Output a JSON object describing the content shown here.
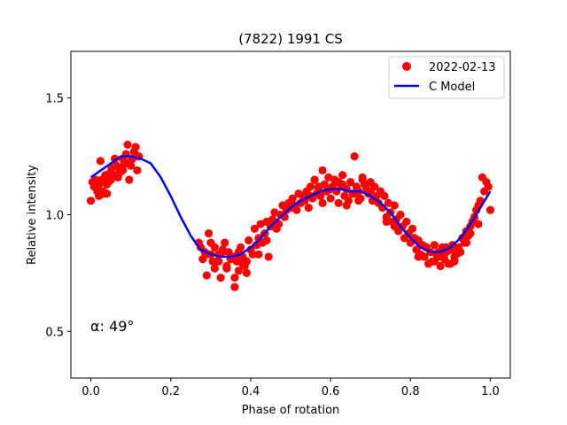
{
  "chart_data": {
    "type": "scatter",
    "title": "(7822) 1991 CS",
    "xlabel": "Phase of rotation",
    "ylabel": "Relative intensity",
    "xlim": [
      -0.05,
      1.05
    ],
    "ylim": [
      0.3,
      1.7
    ],
    "xticks": [
      0.0,
      0.2,
      0.4,
      0.6,
      0.8,
      1.0
    ],
    "xtick_labels": [
      "0.0",
      "0.2",
      "0.4",
      "0.6",
      "0.8",
      "1.0"
    ],
    "yticks": [
      0.5,
      1.0,
      1.5
    ],
    "ytick_labels": [
      "0.5",
      "1.0",
      "1.5"
    ],
    "grid": false,
    "legend_location": "top-right",
    "annotation": "α: 49°",
    "series": [
      {
        "name": "2022-02-13",
        "kind": "scatter",
        "color": "#ff0000",
        "x": [
          0.0,
          0.004,
          0.008,
          0.012,
          0.016,
          0.02,
          0.024,
          0.028,
          0.032,
          0.036,
          0.04,
          0.044,
          0.048,
          0.052,
          0.056,
          0.06,
          0.064,
          0.068,
          0.072,
          0.076,
          0.08,
          0.084,
          0.088,
          0.092,
          0.096,
          0.1,
          0.104,
          0.108,
          0.112,
          0.116,
          0.12,
          0.01,
          0.03,
          0.05,
          0.07,
          0.09,
          0.11,
          0.02,
          0.04,
          0.06,
          0.08,
          0.1,
          0.27,
          0.275,
          0.28,
          0.285,
          0.29,
          0.295,
          0.3,
          0.305,
          0.31,
          0.315,
          0.32,
          0.325,
          0.33,
          0.335,
          0.34,
          0.345,
          0.35,
          0.355,
          0.36,
          0.365,
          0.37,
          0.375,
          0.38,
          0.385,
          0.39,
          0.395,
          0.4,
          0.405,
          0.41,
          0.415,
          0.42,
          0.425,
          0.43,
          0.435,
          0.44,
          0.445,
          0.45,
          0.455,
          0.46,
          0.465,
          0.47,
          0.475,
          0.48,
          0.485,
          0.49,
          0.495,
          0.5,
          0.505,
          0.51,
          0.515,
          0.52,
          0.525,
          0.53,
          0.535,
          0.54,
          0.545,
          0.55,
          0.555,
          0.56,
          0.565,
          0.57,
          0.575,
          0.58,
          0.585,
          0.59,
          0.595,
          0.6,
          0.605,
          0.61,
          0.615,
          0.62,
          0.625,
          0.63,
          0.635,
          0.64,
          0.645,
          0.65,
          0.655,
          0.66,
          0.665,
          0.67,
          0.675,
          0.68,
          0.685,
          0.69,
          0.695,
          0.7,
          0.705,
          0.71,
          0.715,
          0.72,
          0.725,
          0.73,
          0.735,
          0.74,
          0.745,
          0.75,
          0.755,
          0.76,
          0.765,
          0.77,
          0.775,
          0.78,
          0.785,
          0.79,
          0.795,
          0.8,
          0.805,
          0.81,
          0.815,
          0.82,
          0.825,
          0.83,
          0.835,
          0.84,
          0.845,
          0.85,
          0.855,
          0.86,
          0.865,
          0.87,
          0.875,
          0.88,
          0.885,
          0.89,
          0.895,
          0.9,
          0.905,
          0.91,
          0.915,
          0.92,
          0.925,
          0.93,
          0.935,
          0.94,
          0.945,
          0.95,
          0.955,
          0.96,
          0.965,
          0.97,
          0.975,
          0.98,
          0.985,
          0.99,
          0.995,
          1.0,
          0.3,
          0.32,
          0.34,
          0.36,
          0.38,
          0.33,
          0.35,
          0.37,
          0.39,
          0.42,
          0.44,
          0.29,
          0.31,
          0.36,
          0.55,
          0.58,
          0.6,
          0.62,
          0.64,
          0.66,
          0.68,
          0.7,
          0.74,
          0.76,
          0.57,
          0.63,
          0.67,
          0.82,
          0.84,
          0.86,
          0.88,
          0.9,
          0.92,
          0.94,
          0.87,
          0.89,
          0.91,
          0.93,
          0.95,
          0.97
        ],
        "y": [
          1.06,
          1.14,
          1.12,
          1.15,
          1.1,
          1.13,
          1.23,
          1.15,
          1.09,
          1.17,
          1.09,
          1.14,
          1.18,
          1.2,
          1.17,
          1.24,
          1.21,
          1.16,
          1.18,
          1.2,
          1.24,
          1.22,
          1.26,
          1.3,
          1.15,
          1.21,
          1.24,
          1.27,
          1.29,
          1.19,
          1.25,
          1.12,
          1.1,
          1.15,
          1.2,
          1.22,
          1.26,
          1.08,
          1.13,
          1.17,
          1.19,
          1.23,
          0.88,
          0.86,
          0.81,
          0.84,
          0.83,
          0.92,
          0.88,
          0.8,
          0.86,
          0.8,
          0.83,
          0.73,
          0.85,
          0.88,
          0.78,
          0.84,
          0.81,
          0.82,
          0.69,
          0.8,
          0.84,
          0.86,
          0.82,
          0.78,
          0.75,
          0.89,
          0.85,
          0.83,
          0.94,
          0.87,
          0.9,
          0.96,
          0.88,
          0.92,
          0.97,
          0.82,
          0.95,
          0.98,
          1.01,
          0.94,
          0.96,
          1.0,
          1.04,
          0.99,
          1.02,
          1.05,
          1.03,
          1.07,
          1.04,
          1.02,
          1.09,
          1.05,
          1.08,
          1.06,
          1.1,
          1.03,
          1.12,
          1.07,
          1.15,
          1.09,
          1.11,
          1.08,
          1.19,
          1.13,
          1.1,
          1.16,
          1.07,
          1.12,
          1.15,
          1.1,
          1.05,
          1.13,
          1.17,
          1.08,
          1.11,
          1.06,
          1.14,
          1.09,
          1.25,
          1.12,
          1.1,
          1.07,
          1.16,
          1.13,
          1.11,
          1.09,
          1.14,
          1.06,
          1.12,
          1.08,
          1.05,
          1.1,
          1.03,
          1.08,
          0.99,
          1.05,
          1.01,
          0.97,
          1.04,
          0.98,
          0.93,
          1.0,
          0.95,
          0.9,
          0.97,
          0.92,
          0.88,
          0.94,
          0.9,
          0.85,
          0.89,
          0.83,
          0.87,
          0.82,
          0.86,
          0.79,
          0.84,
          0.8,
          0.87,
          0.83,
          0.82,
          0.78,
          0.86,
          0.81,
          0.84,
          0.79,
          0.85,
          0.87,
          0.8,
          0.83,
          0.86,
          0.84,
          0.9,
          0.88,
          0.93,
          0.91,
          0.95,
          0.97,
          0.99,
          1.02,
          1.04,
          1.06,
          1.16,
          1.1,
          1.14,
          1.12,
          1.02,
          0.83,
          0.8,
          0.77,
          0.82,
          0.79,
          0.84,
          0.81,
          0.76,
          0.8,
          0.83,
          0.89,
          0.74,
          0.77,
          0.73,
          1.08,
          1.05,
          1.11,
          1.14,
          1.04,
          1.09,
          1.15,
          1.1,
          0.97,
          0.95,
          1.12,
          1.13,
          1.06,
          0.82,
          0.86,
          0.8,
          0.83,
          0.79,
          0.85,
          0.88,
          0.84,
          0.86,
          0.82,
          0.9,
          0.92,
          0.96
        ]
      },
      {
        "name": "C Model",
        "kind": "line",
        "color": "#0000ff",
        "x": [
          0.0,
          0.025,
          0.05,
          0.075,
          0.1,
          0.125,
          0.15,
          0.175,
          0.2,
          0.225,
          0.25,
          0.275,
          0.3,
          0.325,
          0.35,
          0.375,
          0.4,
          0.425,
          0.45,
          0.475,
          0.5,
          0.525,
          0.55,
          0.575,
          0.6,
          0.625,
          0.65,
          0.675,
          0.7,
          0.725,
          0.75,
          0.775,
          0.8,
          0.825,
          0.85,
          0.875,
          0.9,
          0.925,
          0.95,
          0.975,
          1.0
        ],
        "y": [
          1.16,
          1.19,
          1.22,
          1.25,
          1.25,
          1.24,
          1.22,
          1.16,
          1.08,
          0.99,
          0.91,
          0.85,
          0.83,
          0.82,
          0.82,
          0.83,
          0.86,
          0.9,
          0.95,
          0.99,
          1.03,
          1.06,
          1.08,
          1.1,
          1.11,
          1.11,
          1.1,
          1.1,
          1.08,
          1.05,
          1.01,
          0.95,
          0.9,
          0.86,
          0.84,
          0.84,
          0.86,
          0.9,
          0.96,
          1.03,
          1.1
        ]
      }
    ]
  }
}
